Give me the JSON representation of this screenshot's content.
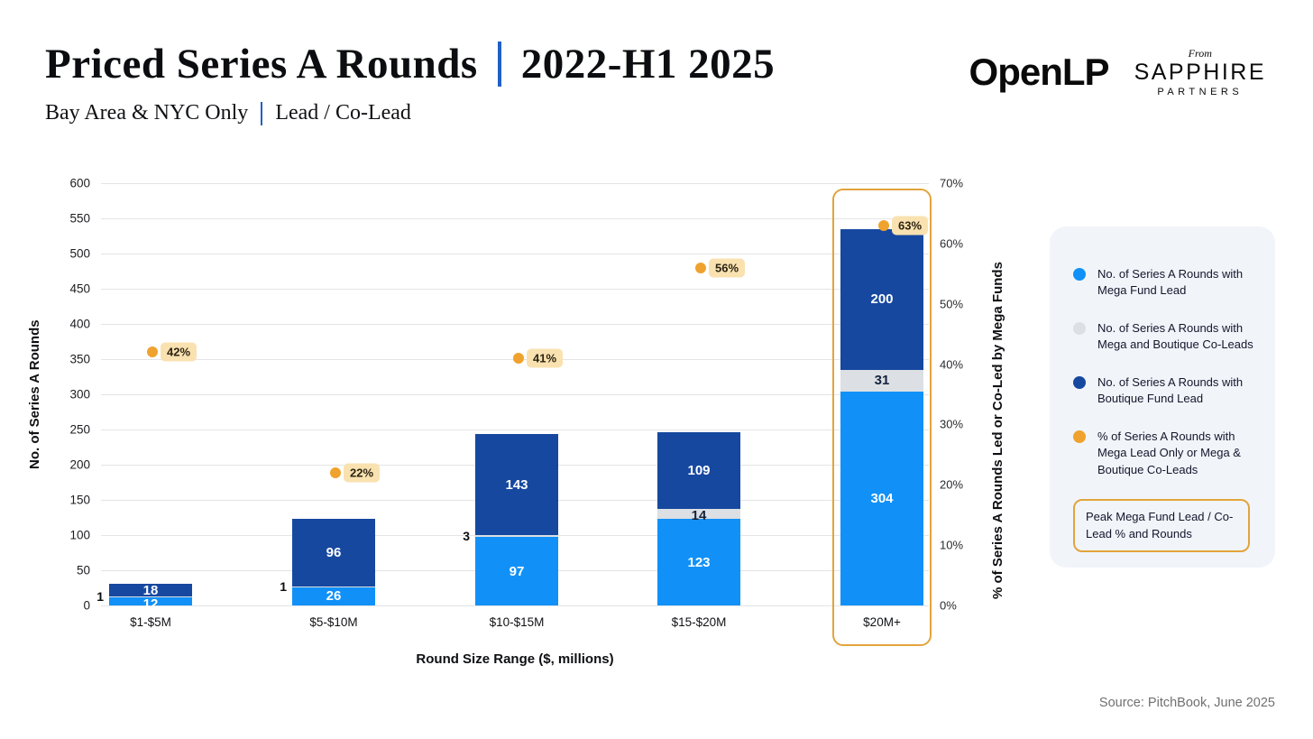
{
  "header": {
    "title_left": "Priced Series A Rounds",
    "title_right": "2022-H1 2025",
    "subtitle_left": "Bay Area & NYC Only",
    "subtitle_right": "Lead / Co-Lead",
    "logo_openlp": "OpenLP",
    "logo_from": "From",
    "logo_sapphire": "SAPPHIRE",
    "logo_partners": "PARTNERS"
  },
  "chart_data": {
    "type": "bar",
    "stacked": true,
    "categories": [
      "$1-$5M",
      "$5-$10M",
      "$10-$15M",
      "$15-$20M",
      "$20M+"
    ],
    "series": [
      {
        "name": "No. of Series A Rounds with Mega Fund Lead",
        "color": "#1191f8",
        "text_color": "#ffffff",
        "values": [
          12,
          26,
          97,
          123,
          304
        ]
      },
      {
        "name": "No. of Series A Rounds with Mega and Boutique Co-Leads",
        "color": "#dcdfe3",
        "text_color": "#15233f",
        "values": [
          1,
          1,
          3,
          14,
          31
        ]
      },
      {
        "name": "No. of Series A Rounds with Boutique Fund Lead",
        "color": "#16489f",
        "text_color": "#ffffff",
        "values": [
          18,
          96,
          143,
          109,
          200
        ]
      }
    ],
    "pct_series": {
      "name": "% of Series A Rounds with Mega Lead Only or Mega & Boutique Co-Leads",
      "color": "#f0a22e",
      "label_bg": "#f9e2b0",
      "values": [
        42,
        22,
        41,
        56,
        63
      ],
      "labels": [
        "42%",
        "22%",
        "41%",
        "56%",
        "63%"
      ]
    },
    "xlabel": "Round Size Range ($, millions)",
    "ylabel_left": "No. of Series A Rounds",
    "ylabel_right": "% of Series A Rounds Led or Co-Led by Mega Funds",
    "y_left": {
      "min": 0,
      "max": 600,
      "step": 50
    },
    "y_right": {
      "min": 0,
      "max": 70,
      "step": 10,
      "suffix": "%"
    },
    "grid": true,
    "legend_position": "right",
    "highlight_index": 4
  },
  "legend": {
    "items": [
      {
        "label": "No. of Series A Rounds with Mega Fund Lead",
        "color": "#1191f8"
      },
      {
        "label": "No. of Series A Rounds with Mega and Boutique Co-Leads",
        "color": "#dcdfe3"
      },
      {
        "label": "No. of Series A Rounds with Boutique Fund Lead",
        "color": "#16489f"
      },
      {
        "label": "% of Series A Rounds with Mega Lead Only or Mega & Boutique Co-Leads",
        "color": "#f0a22e"
      }
    ],
    "callout": "Peak Mega Fund Lead / Co-Lead % and Rounds"
  },
  "footer": {
    "source": "Source: PitchBook, June 2025"
  }
}
